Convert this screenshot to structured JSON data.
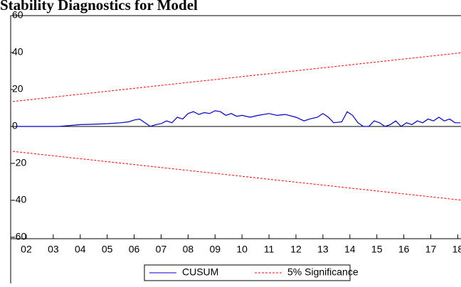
{
  "chart_data": {
    "type": "line",
    "title": "Stability Diagnostics for Model",
    "xlim": [
      2001.5,
      2018.2
    ],
    "xticks": [
      {
        "value": 2002,
        "label": "02"
      },
      {
        "value": 2003,
        "label": "03"
      },
      {
        "value": 2004,
        "label": "04"
      },
      {
        "value": 2005,
        "label": "05"
      },
      {
        "value": 2006,
        "label": "06"
      },
      {
        "value": 2007,
        "label": "07"
      },
      {
        "value": 2008,
        "label": "08"
      },
      {
        "value": 2009,
        "label": "09"
      },
      {
        "value": 2010,
        "label": "10"
      },
      {
        "value": 2011,
        "label": "11"
      },
      {
        "value": 2012,
        "label": "12"
      },
      {
        "value": 2013,
        "label": "13"
      },
      {
        "value": 2014,
        "label": "14"
      },
      {
        "value": 2015,
        "label": "15"
      },
      {
        "value": 2016,
        "label": "16"
      },
      {
        "value": 2017,
        "label": "17"
      },
      {
        "value": 2018,
        "label": "18"
      }
    ],
    "ylim": [
      -60,
      60
    ],
    "yticks": [
      -60,
      -40,
      -20,
      0,
      20,
      40,
      60
    ],
    "series": [
      {
        "name": "CUSUM",
        "color": "#0000cc",
        "dashed": false,
        "x": [
          2001.6,
          2003.2,
          2003.6,
          2004,
          2004.5,
          2005,
          2005.5,
          2005.8,
          2006,
          2006.2,
          2006.4,
          2006.6,
          2006.8,
          2007,
          2007.2,
          2007.4,
          2007.6,
          2007.8,
          2008,
          2008.2,
          2008.4,
          2008.6,
          2008.8,
          2009,
          2009.2,
          2009.4,
          2009.6,
          2009.8,
          2010,
          2010.3,
          2010.6,
          2011,
          2011.3,
          2011.6,
          2012,
          2012.3,
          2012.5,
          2012.8,
          2013,
          2013.2,
          2013.4,
          2013.7,
          2013.9,
          2014.1,
          2014.3,
          2014.5,
          2014.7,
          2014.9,
          2015.1,
          2015.3,
          2015.5,
          2015.7,
          2015.9,
          2016.1,
          2016.3,
          2016.5,
          2016.7,
          2016.9,
          2017.1,
          2017.3,
          2017.5,
          2017.7,
          2017.9,
          2018.1
        ],
        "values": [
          0,
          0,
          0.5,
          1,
          1.2,
          1.5,
          2,
          2.5,
          3.5,
          4,
          2,
          0,
          1,
          1.5,
          3,
          2,
          5,
          4,
          7,
          8,
          6.5,
          7.5,
          7,
          8.5,
          8,
          6,
          7,
          5.5,
          6,
          5,
          6,
          7,
          6,
          6.5,
          5,
          3,
          4,
          5,
          7,
          5,
          2,
          2.5,
          8,
          6,
          2,
          0,
          0,
          3,
          2,
          0,
          1,
          3,
          0,
          2,
          1,
          3,
          2,
          4,
          3,
          5,
          3,
          4,
          2,
          2
        ]
      },
      {
        "name": "5% Significance",
        "color": "#ff0000",
        "dashed": true,
        "x": [
          2001.5,
          2018.2
        ],
        "values": [
          13.5,
          40
        ],
        "lower": [
          -13.5,
          -40
        ]
      }
    ]
  }
}
